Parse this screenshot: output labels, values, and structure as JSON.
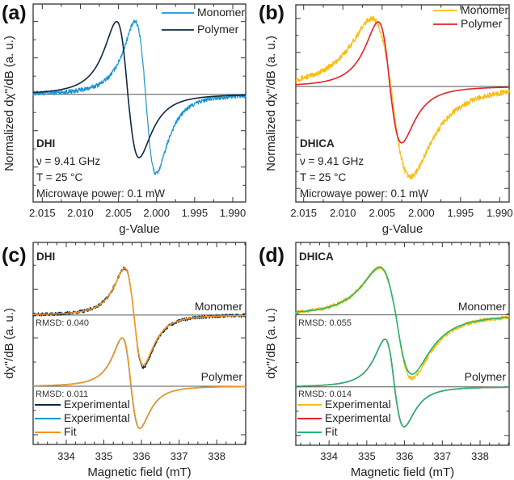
{
  "chart_data": [
    {
      "panel": "(a)",
      "type": "line",
      "xlabel": "g-Value",
      "ylabel": "Normalized dχ''/dB (a. u.)",
      "xlim": [
        2.0162,
        1.9883
      ],
      "ylim": [
        -1.48,
        1.24
      ],
      "x_ticks": [
        "2.015",
        "2.010",
        "2.005",
        "2.000",
        "1.995",
        "1.990"
      ],
      "x_tick_values": [
        2.015,
        2.01,
        2.005,
        2.0,
        1.995,
        1.99
      ],
      "x_minor_step": 0.0025,
      "y_tick_step": 0.25,
      "annotations": {
        "sample": "DHI",
        "freq": "ν = 9.41 GHz",
        "temp": "T = 25 °C",
        "power": "Microwave power: 0.1 mW"
      },
      "legend": {
        "placement": "top-right",
        "entries": [
          "Monomer",
          "Polymer"
        ]
      },
      "series": [
        {
          "name": "Monomer",
          "color": "#1b95d4",
          "offset": 0,
          "center": 2.00144,
          "half_pp_width": 0.00138,
          "peak": 1.0,
          "trough": -1.09,
          "noise": 0.03
        },
        {
          "name": "Polymer",
          "color": "#0e2841",
          "offset": 0,
          "center": 2.00377,
          "half_pp_width": 0.00148,
          "peak": 1.0,
          "trough": -0.87,
          "noise": 0
        }
      ]
    },
    {
      "panel": "(b)",
      "type": "line",
      "xlabel": "g-Value",
      "ylabel": "Normalized dχ''/dB (a. u.)",
      "xlim": [
        2.016,
        1.9888
      ],
      "ylim": [
        -1.7,
        1.2
      ],
      "x_ticks": [
        "2.015",
        "2.010",
        "2.005",
        "2.000",
        "1.995",
        "1.990"
      ],
      "x_tick_values": [
        2.015,
        2.01,
        2.005,
        2.0,
        1.995,
        1.99
      ],
      "x_minor_step": 0.0025,
      "y_tick_step": 0.25,
      "annotations": {
        "sample": "DHICA",
        "freq": "ν = 9.41 GHz",
        "temp": "T = 25 °C",
        "power": "Microwave power: 0.1 mW"
      },
      "legend": {
        "placement": "top-right",
        "entries": [
          "Monomer",
          "Polymer"
        ]
      },
      "series": [
        {
          "name": "Monomer",
          "color": "#f7be12",
          "offset": 0,
          "center": 2.00385,
          "half_pp_width": 0.00245,
          "peak": 1.0,
          "trough": -1.33,
          "noise": 0.04
        },
        {
          "name": "Polymer",
          "color": "#e8202a",
          "offset": 0,
          "center": 2.004,
          "half_pp_width": 0.0015,
          "peak": 0.95,
          "trough": -0.83,
          "noise": 0
        }
      ]
    },
    {
      "panel": "(c)",
      "type": "line",
      "xlabel": "Magnetic field (mT)",
      "ylabel": "dχ''/dB (a. u.)",
      "xlim": [
        333.12,
        338.77
      ],
      "ylim": [
        -1.2,
        2.97
      ],
      "x_ticks": [
        "334",
        "335",
        "336",
        "337",
        "338"
      ],
      "x_tick_values": [
        334,
        335,
        336,
        337,
        338
      ],
      "x_minor_step": 0.25,
      "y_tick_step": 0.5,
      "annotations": {
        "sample": "DHI",
        "monomer_label": "Monomer",
        "polymer_label": "Polymer",
        "rmsd_monomer": "RMSD: 0.040",
        "rmsd_polymer": "RMSD: 0.011"
      },
      "legend": {
        "placement": "bottom-left",
        "entries": [
          "Experimental",
          "Experimental",
          "Fit"
        ]
      },
      "series": [
        {
          "name": "Experimental (Monomer)",
          "color": "#0e2841",
          "offset": 1.47,
          "center": 335.8,
          "half_pp_width": 0.25,
          "peak": 0.97,
          "trough": -1.08,
          "noise": 0.035
        },
        {
          "name": "Experimental (Polymer)",
          "color": "#1b95d4",
          "offset": 0,
          "center": 335.72,
          "half_pp_width": 0.235,
          "peak": 1.0,
          "trough": -0.87,
          "noise": 0
        },
        {
          "name": "Fit (Monomer)",
          "color": "#f7941d",
          "offset": 1.47,
          "center": 335.8,
          "half_pp_width": 0.25,
          "peak": 0.97,
          "trough": -1.03,
          "noise": 0
        },
        {
          "name": "Fit (Polymer)",
          "color": "#f7941d",
          "offset": 0,
          "center": 335.725,
          "half_pp_width": 0.235,
          "peak": 1.0,
          "trough": -0.87,
          "noise": 0
        }
      ]
    },
    {
      "panel": "(d)",
      "type": "line",
      "xlabel": "Magnetic field (mT)",
      "ylabel": "dχ''/dB (a. u.)",
      "xlim": [
        333.12,
        338.77
      ],
      "ylim": [
        -1.2,
        2.97
      ],
      "x_ticks": [
        "334",
        "335",
        "336",
        "337",
        "338"
      ],
      "x_tick_values": [
        334,
        335,
        336,
        337,
        338
      ],
      "x_minor_step": 0.25,
      "y_tick_step": 0.5,
      "annotations": {
        "sample": "DHICA",
        "monomer_label": "Monomer",
        "polymer_label": "Polymer",
        "rmsd_monomer": "RMSD: 0.055",
        "rmsd_polymer": "RMSD: 0.014"
      },
      "legend": {
        "placement": "bottom-left",
        "entries": [
          "Experimental",
          "Experimental",
          "Fit"
        ]
      },
      "series": [
        {
          "name": "Experimental (Monomer)",
          "color": "#f7be12",
          "offset": 1.48,
          "center": 335.77,
          "half_pp_width": 0.43,
          "peak": 0.98,
          "trough": -1.3,
          "noise": 0.04
        },
        {
          "name": "Experimental (Polymer)",
          "color": "#e8202a",
          "offset": 0,
          "center": 335.735,
          "half_pp_width": 0.255,
          "peak": 0.98,
          "trough": -0.82,
          "noise": 0
        },
        {
          "name": "Fit (Monomer)",
          "color": "#22b573",
          "offset": 1.48,
          "center": 335.77,
          "half_pp_width": 0.43,
          "peak": 0.98,
          "trough": -1.22,
          "noise": 0
        },
        {
          "name": "Fit (Polymer)",
          "color": "#22b573",
          "offset": 0,
          "center": 335.735,
          "half_pp_width": 0.255,
          "peak": 0.98,
          "trough": -0.82,
          "noise": 0
        }
      ]
    }
  ]
}
